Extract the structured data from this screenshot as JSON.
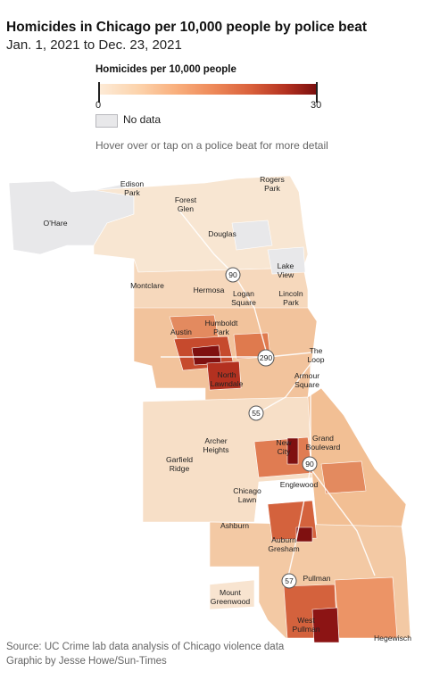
{
  "title": "Homicides in Chicago per 10,000 people by police beat",
  "subtitle": "Jan. 1, 2021 to Dec. 23, 2021",
  "legend": {
    "title": "Homicides per 10,000 people",
    "min_label": "0",
    "max_label": "30",
    "min": 0,
    "max": 30,
    "color_low": "#fdebd7",
    "color_high": "#7a0e0e",
    "nodata_label": "No data",
    "nodata_color": "#e8e8ea"
  },
  "hint": "Hover over or tap on a police beat for more detail",
  "map": {
    "neighborhoods": [
      {
        "name": "Edison Park",
        "lines": [
          "Edison",
          "Park"
        ]
      },
      {
        "name": "Rogers Park",
        "lines": [
          "Rogers",
          "Park"
        ]
      },
      {
        "name": "Forest Glen",
        "lines": [
          "Forest",
          "Glen"
        ]
      },
      {
        "name": "O'Hare",
        "lines": [
          "O'Hare"
        ]
      },
      {
        "name": "Douglas",
        "lines": [
          "Douglas"
        ]
      },
      {
        "name": "Lake View",
        "lines": [
          "Lake",
          "View"
        ]
      },
      {
        "name": "Montclare",
        "lines": [
          "Montclare"
        ]
      },
      {
        "name": "Hermosa",
        "lines": [
          "Hermosa"
        ]
      },
      {
        "name": "Logan Square",
        "lines": [
          "Logan",
          "Square"
        ]
      },
      {
        "name": "Lincoln Park",
        "lines": [
          "Lincoln",
          "Park"
        ]
      },
      {
        "name": "Humboldt Park",
        "lines": [
          "Humboldt",
          "Park"
        ]
      },
      {
        "name": "Austin",
        "lines": [
          "Austin"
        ]
      },
      {
        "name": "The Loop",
        "lines": [
          "The",
          "Loop"
        ]
      },
      {
        "name": "North Lawndale",
        "lines": [
          "North",
          "Lawndale"
        ]
      },
      {
        "name": "Armour Square",
        "lines": [
          "Armour",
          "Square"
        ]
      },
      {
        "name": "Grand Boulevard",
        "lines": [
          "Grand",
          "Boulevard"
        ]
      },
      {
        "name": "Archer Heights",
        "lines": [
          "Archer",
          "Heights"
        ]
      },
      {
        "name": "New City",
        "lines": [
          "New",
          "City"
        ]
      },
      {
        "name": "Garfield Ridge",
        "lines": [
          "Garfield",
          "Ridge"
        ]
      },
      {
        "name": "Englewood",
        "lines": [
          "Englewood"
        ]
      },
      {
        "name": "Chicago Lawn",
        "lines": [
          "Chicago",
          "Lawn"
        ]
      },
      {
        "name": "Ashburn",
        "lines": [
          "Ashburn"
        ]
      },
      {
        "name": "Auburn Gresham",
        "lines": [
          "Auburn",
          "Gresham"
        ]
      },
      {
        "name": "Pullman",
        "lines": [
          "Pullman"
        ]
      },
      {
        "name": "Mount Greenwood",
        "lines": [
          "Mount",
          "Greenwood"
        ]
      },
      {
        "name": "West Pullman",
        "lines": [
          "West",
          "Pullman"
        ]
      },
      {
        "name": "Hegewisch",
        "lines": [
          "Hegewisch"
        ]
      }
    ],
    "highways": [
      "90",
      "290",
      "55",
      "90",
      "57"
    ]
  },
  "source": "Source: UC Crime lab data analysis of Chicago violence data",
  "credit": "Graphic by Jesse Howe/Sun-Times"
}
